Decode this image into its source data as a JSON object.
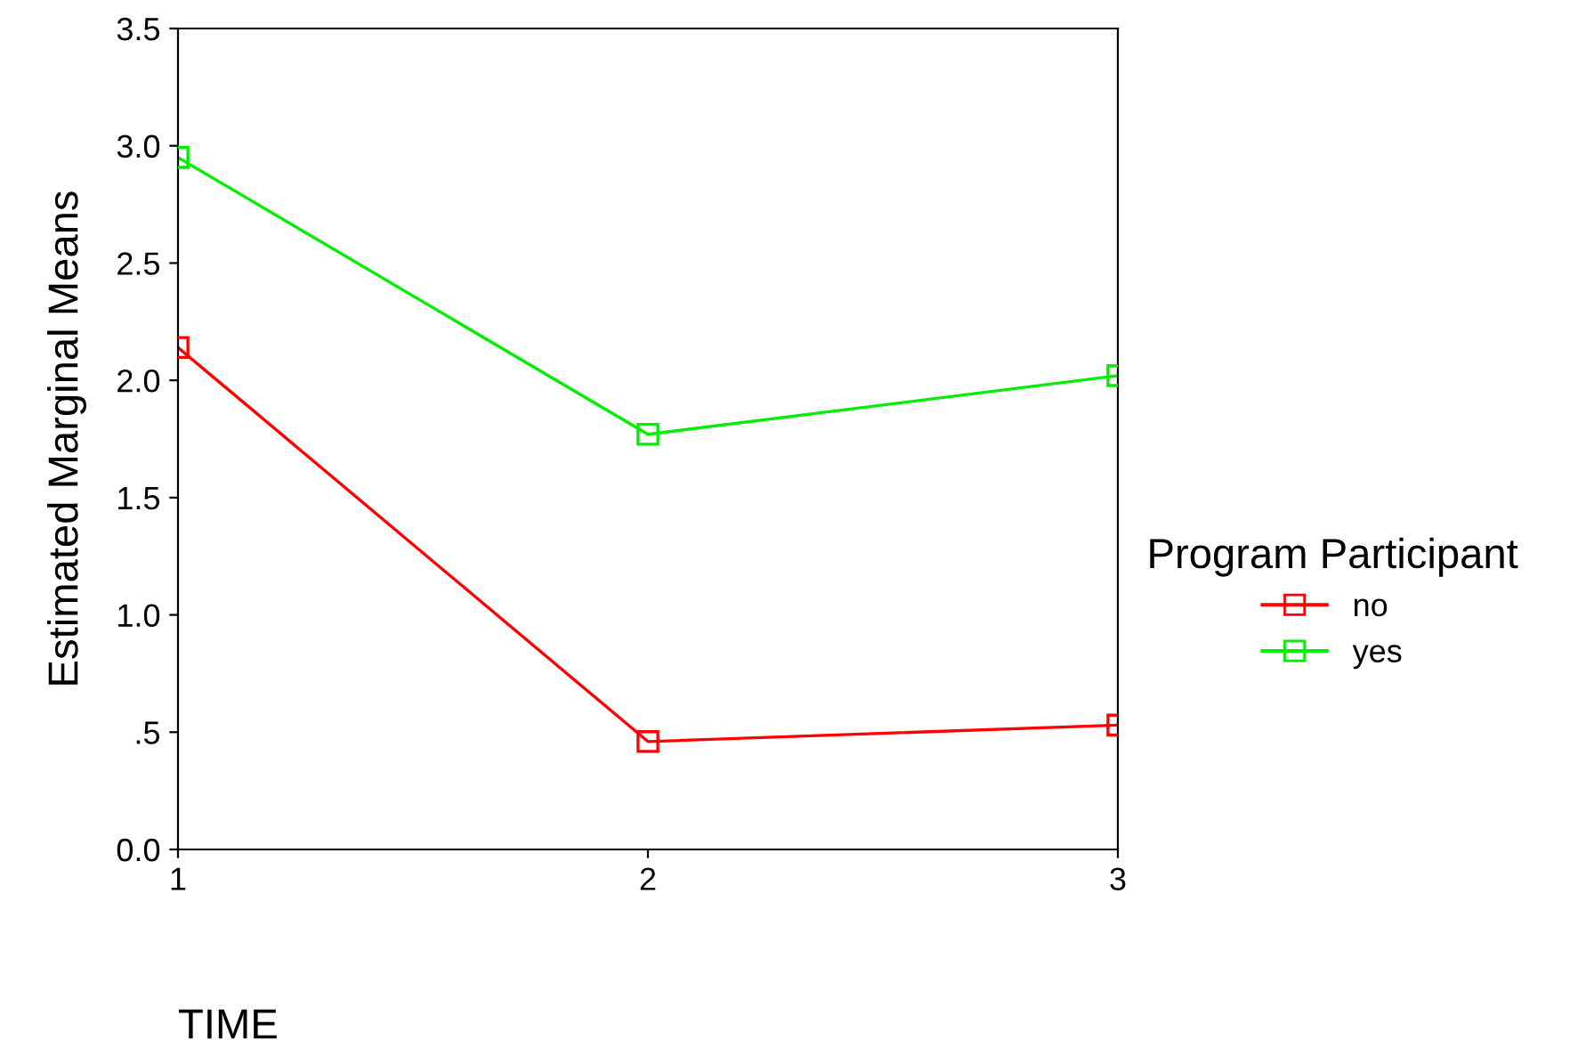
{
  "chart_data": {
    "type": "line",
    "x": [
      1,
      2,
      3
    ],
    "xlabel": "TIME",
    "ylabel": "Estimated Marginal Means",
    "legend_title": "Program Participant",
    "series": [
      {
        "name": "no",
        "color": "#ff0000",
        "values": [
          2.14,
          0.46,
          0.53
        ]
      },
      {
        "name": "yes",
        "color": "#00ee00",
        "values": [
          2.95,
          1.77,
          2.02
        ]
      }
    ],
    "xlim": [
      1,
      3
    ],
    "xticks": [
      1,
      2,
      3
    ],
    "ylim": [
      0,
      3.5
    ],
    "yticks": [
      {
        "value": 0,
        "label": "0.0"
      },
      {
        "value": 0.5,
        "label": ".5"
      },
      {
        "value": 1.0,
        "label": "1.0"
      },
      {
        "value": 1.5,
        "label": "1.5"
      },
      {
        "value": 2.0,
        "label": "2.0"
      },
      {
        "value": 2.5,
        "label": "2.5"
      },
      {
        "value": 3.0,
        "label": "3.0"
      },
      {
        "value": 3.5,
        "label": "3.5"
      }
    ],
    "marker": "square",
    "line_style": "solid",
    "grid": false,
    "legend": "right"
  }
}
